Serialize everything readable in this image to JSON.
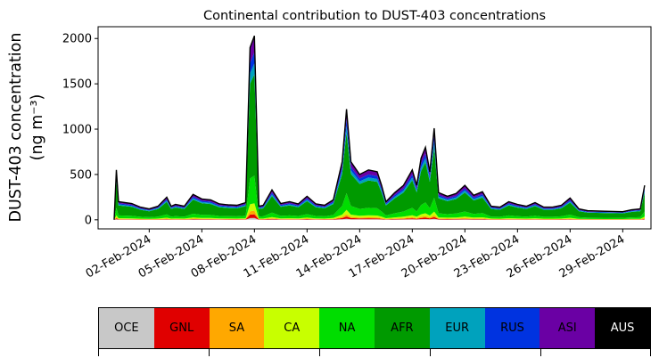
{
  "chart_data": {
    "type": "area",
    "title": "Continental contribution to DUST-403 concentrations",
    "ylabel_line1": "DUST-403 concentration",
    "ylabel_line2": "(ng m⁻³)",
    "xlabel": "",
    "ylim": [
      -100,
      2130
    ],
    "yticks": [
      0,
      500,
      1000,
      1500,
      2000
    ],
    "x_start": "2024-01-31",
    "x_end": "2024-03-01",
    "xticks": [
      "02-Feb-2024",
      "05-Feb-2024",
      "08-Feb-2024",
      "11-Feb-2024",
      "14-Feb-2024",
      "17-Feb-2024",
      "20-Feb-2024",
      "23-Feb-2024",
      "26-Feb-2024",
      "29-Feb-2024"
    ],
    "series_order": [
      "OCE",
      "GNL",
      "SA",
      "CA",
      "NA",
      "AFR",
      "EUR",
      "RUS",
      "ASI",
      "AUS"
    ],
    "series_colors": {
      "OCE": "#c8c8c8",
      "GNL": "#e00000",
      "SA": "#ffa800",
      "CA": "#c8ff00",
      "NA": "#00dd00",
      "AFR": "#009a00",
      "EUR": "#00a2bd",
      "RUS": "#0033e0",
      "ASI": "#6a00a4",
      "AUS": "#000000"
    },
    "total_line": [
      [
        "2024-01-31T00:00",
        0
      ],
      [
        "2024-01-31T03:00",
        550
      ],
      [
        "2024-01-31T06:00",
        200
      ],
      [
        "2024-02-01T00:00",
        180
      ],
      [
        "2024-02-01T12:00",
        140
      ],
      [
        "2024-02-02T00:00",
        120
      ],
      [
        "2024-02-02T12:00",
        150
      ],
      [
        "2024-02-03T00:00",
        250
      ],
      [
        "2024-02-03T06:00",
        150
      ],
      [
        "2024-02-03T12:00",
        170
      ],
      [
        "2024-02-04T00:00",
        150
      ],
      [
        "2024-02-04T12:00",
        280
      ],
      [
        "2024-02-05T00:00",
        230
      ],
      [
        "2024-02-05T12:00",
        220
      ],
      [
        "2024-02-06T00:00",
        175
      ],
      [
        "2024-02-06T12:00",
        165
      ],
      [
        "2024-02-07T00:00",
        160
      ],
      [
        "2024-02-07T12:00",
        190
      ],
      [
        "2024-02-07T18:00",
        1900
      ],
      [
        "2024-02-08T00:00",
        2030
      ],
      [
        "2024-02-08T06:00",
        150
      ],
      [
        "2024-02-08T12:00",
        160
      ],
      [
        "2024-02-09T00:00",
        330
      ],
      [
        "2024-02-09T12:00",
        180
      ],
      [
        "2024-02-10T00:00",
        200
      ],
      [
        "2024-02-10T12:00",
        175
      ],
      [
        "2024-02-11T00:00",
        260
      ],
      [
        "2024-02-11T12:00",
        175
      ],
      [
        "2024-02-12T00:00",
        160
      ],
      [
        "2024-02-12T12:00",
        220
      ],
      [
        "2024-02-13T00:00",
        640
      ],
      [
        "2024-02-13T06:00",
        1220
      ],
      [
        "2024-02-13T12:00",
        640
      ],
      [
        "2024-02-14T00:00",
        500
      ],
      [
        "2024-02-14T12:00",
        550
      ],
      [
        "2024-02-15T00:00",
        530
      ],
      [
        "2024-02-15T06:00",
        380
      ],
      [
        "2024-02-15T12:00",
        200
      ],
      [
        "2024-02-16T00:00",
        300
      ],
      [
        "2024-02-16T12:00",
        380
      ],
      [
        "2024-02-17T00:00",
        550
      ],
      [
        "2024-02-17T06:00",
        380
      ],
      [
        "2024-02-17T12:00",
        680
      ],
      [
        "2024-02-17T18:00",
        800
      ],
      [
        "2024-02-18T00:00",
        530
      ],
      [
        "2024-02-18T06:00",
        1010
      ],
      [
        "2024-02-18T12:00",
        300
      ],
      [
        "2024-02-19T00:00",
        260
      ],
      [
        "2024-02-19T12:00",
        290
      ],
      [
        "2024-02-20T00:00",
        380
      ],
      [
        "2024-02-20T12:00",
        270
      ],
      [
        "2024-02-21T00:00",
        310
      ],
      [
        "2024-02-21T12:00",
        150
      ],
      [
        "2024-02-22T00:00",
        140
      ],
      [
        "2024-02-22T12:00",
        200
      ],
      [
        "2024-02-23T00:00",
        170
      ],
      [
        "2024-02-23T12:00",
        150
      ],
      [
        "2024-02-24T00:00",
        190
      ],
      [
        "2024-02-24T12:00",
        140
      ],
      [
        "2024-02-25T00:00",
        140
      ],
      [
        "2024-02-25T12:00",
        160
      ],
      [
        "2024-02-26T00:00",
        240
      ],
      [
        "2024-02-26T12:00",
        120
      ],
      [
        "2024-02-27T00:00",
        100
      ],
      [
        "2024-02-28T00:00",
        95
      ],
      [
        "2024-02-29T00:00",
        90
      ],
      [
        "2024-02-29T12:00",
        110
      ],
      [
        "2024-03-01T00:00",
        120
      ],
      [
        "2024-03-01T06:00",
        380
      ]
    ],
    "fractions": {
      "OCE": 0.01,
      "GNL": 0.02,
      "SA": 0.02,
      "CA": 0.04,
      "NA": 0.15,
      "AFR": 0.55,
      "EUR": 0.06,
      "RUS": 0.06,
      "ASI": 0.08,
      "AUS": 0.01
    },
    "legend": [
      {
        "label": "OCE",
        "color": "#c8c8c8",
        "text_color": "#000000"
      },
      {
        "label": "GNL",
        "color": "#e00000",
        "text_color": "#000000"
      },
      {
        "label": "SA",
        "color": "#ffa800",
        "text_color": "#000000"
      },
      {
        "label": "CA",
        "color": "#c8ff00",
        "text_color": "#000000"
      },
      {
        "label": "NA",
        "color": "#00dd00",
        "text_color": "#000000"
      },
      {
        "label": "AFR",
        "color": "#009a00",
        "text_color": "#000000"
      },
      {
        "label": "EUR",
        "color": "#00a2bd",
        "text_color": "#000000"
      },
      {
        "label": "RUS",
        "color": "#0033e0",
        "text_color": "#000000"
      },
      {
        "label": "ASI",
        "color": "#6a00a4",
        "text_color": "#000000"
      },
      {
        "label": "AUS",
        "color": "#000000",
        "text_color": "#ffffff"
      }
    ]
  }
}
